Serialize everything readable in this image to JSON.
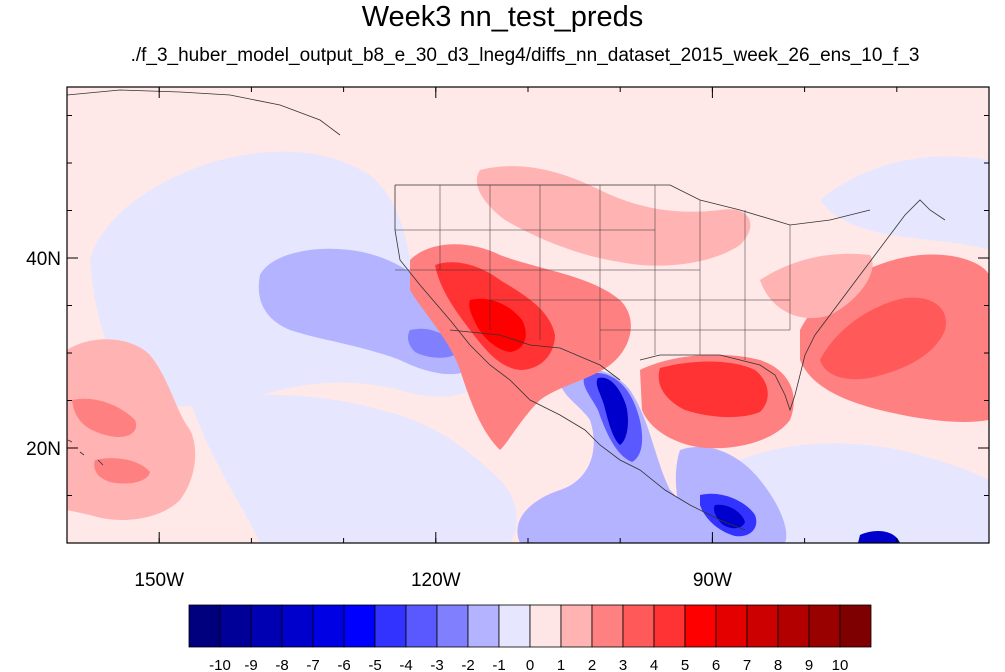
{
  "title": "Week3 nn_test_preds",
  "subtitle": "./f_3_huber_model_output_b8_e_30_d3_lneg4/diffs_nn_dataset_2015_week_26_ens_10_f_3",
  "map": {
    "projection": "cylindrical-equidistant",
    "lon_range": [
      -160,
      -60
    ],
    "lat_range": [
      10,
      58
    ],
    "x_tick_labels": [
      {
        "lon": -150,
        "label": "150W"
      },
      {
        "lon": -120,
        "label": "120W"
      },
      {
        "lon": -90,
        "label": "90W"
      }
    ],
    "y_tick_labels": [
      {
        "lat": 40,
        "label": "40N"
      },
      {
        "lat": 20,
        "label": "20N"
      }
    ],
    "background_color": "#ffe8e8"
  },
  "colorbar": {
    "colors": [
      "#00007f",
      "#000099",
      "#0000b2",
      "#0000cc",
      "#0000e5",
      "#0000ff",
      "#3333ff",
      "#5959ff",
      "#8080ff",
      "#b3b3ff",
      "#e6e6ff",
      "#ffe6e6",
      "#ffb3b3",
      "#ff8080",
      "#ff5959",
      "#ff3333",
      "#ff0000",
      "#e50000",
      "#cc0000",
      "#b20000",
      "#990000",
      "#7f0000"
    ],
    "labels": [
      "-10",
      "-9",
      "-8",
      "-7",
      "-6",
      "-5",
      "-4",
      "-3",
      "-2",
      "-1",
      "0",
      "1",
      "2",
      "3",
      "4",
      "5",
      "6",
      "7",
      "8",
      "9",
      "10"
    ]
  }
}
